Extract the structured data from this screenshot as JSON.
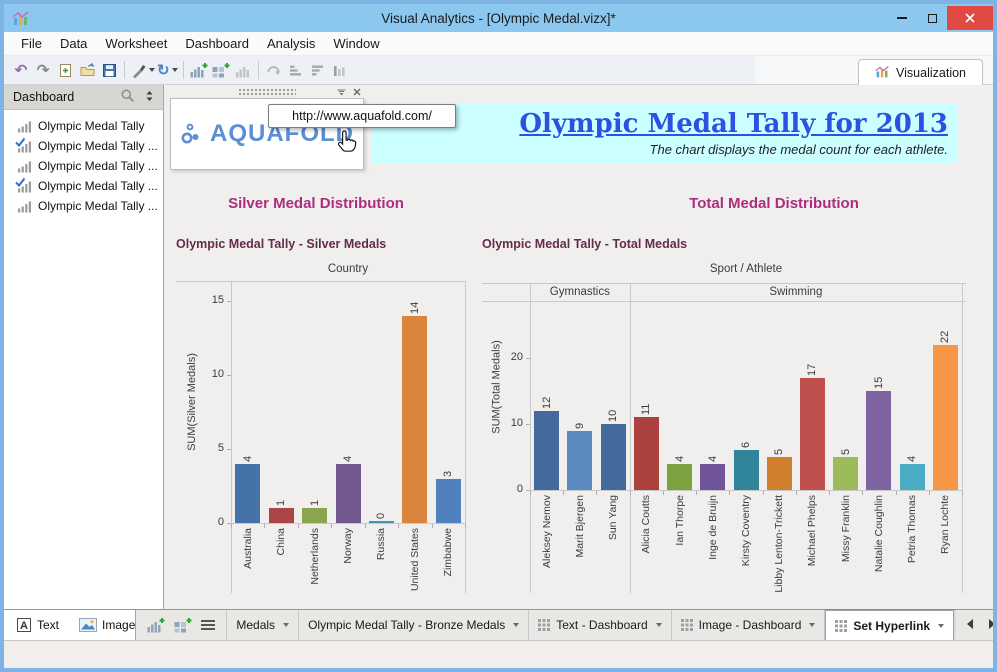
{
  "window": {
    "title": "Visual Analytics - [Olympic Medal.vizx]*"
  },
  "menu": {
    "items": [
      "File",
      "Data",
      "Worksheet",
      "Dashboard",
      "Analysis",
      "Window"
    ]
  },
  "toolbar": {
    "buttons": [
      {
        "icon": "undo-icon"
      },
      {
        "icon": "redo-icon"
      },
      {
        "icon": "new-file-icon"
      },
      {
        "icon": "open-file-icon"
      },
      {
        "icon": "save-icon"
      },
      {
        "sep": true
      },
      {
        "icon": "format-painter-icon",
        "caret": true
      },
      {
        "icon": "refresh-icon",
        "caret": true
      },
      {
        "sep": true
      },
      {
        "icon": "add-worksheet-icon"
      },
      {
        "icon": "add-dashboard-icon"
      },
      {
        "icon": "duplicate-worksheet-icon"
      },
      {
        "sep": true
      },
      {
        "icon": "swap-axes-icon"
      },
      {
        "icon": "sort-ascending-icon"
      },
      {
        "icon": "sort-descending-icon"
      },
      {
        "icon": "highlight-icon"
      }
    ],
    "visualization_label": "Visualization"
  },
  "sidebar": {
    "header": "Dashboard",
    "header_icons": [
      "search-icon",
      "sort-items-icon"
    ],
    "items": [
      {
        "label": "Olympic Medal Tally",
        "icon": "worksheet-chart-icon",
        "checked": false
      },
      {
        "label": "Olympic Medal Tally ...",
        "icon": "worksheet-chart-icon",
        "checked": true
      },
      {
        "label": "Olympic Medal Tally ...",
        "icon": "worksheet-chart-icon",
        "checked": false
      },
      {
        "label": "Olympic Medal Tally ...",
        "icon": "worksheet-chart-icon",
        "checked": true
      },
      {
        "label": "Olympic Medal Tally ...",
        "icon": "worksheet-chart-icon",
        "checked": false
      }
    ]
  },
  "dashboard": {
    "logo_widget": {
      "brand": "AQUAFOLD",
      "icon": "molecule-icon",
      "tooltip": "http://www.aquafold.com/"
    },
    "banner": {
      "title": "Olympic Medal Tally for 2013",
      "subtitle": "The chart displays the medal count for each athlete."
    }
  },
  "chart_data": [
    {
      "type": "bar",
      "section_heading": "Silver Medal Distribution",
      "title": "Olympic Medal Tally - Silver Medals",
      "column_header": "Country",
      "ylabel": "SUM(Silver Medals)",
      "yticks": [
        0,
        5,
        10,
        15
      ],
      "ylim": [
        0,
        16
      ],
      "grid": false,
      "categories": [
        "Australia",
        "China",
        "Netherlands",
        "Norway",
        "Russia",
        "United States",
        "Zimbabwe"
      ],
      "values": [
        4,
        1,
        1,
        4,
        0,
        14,
        3
      ],
      "colors": [
        "#4572a7",
        "#aa4643",
        "#89a54e",
        "#71588f",
        "#4198af",
        "#db843d",
        "#4f81bd"
      ]
    },
    {
      "type": "bar",
      "section_heading": "Total Medal Distribution",
      "title": "Olympic Medal Tally - Total Medals",
      "column_header": "Sport / Athlete",
      "ylabel": "SUM(Total Medals)",
      "yticks": [
        0,
        10,
        20
      ],
      "ylim": [
        0,
        26
      ],
      "grid": false,
      "groups": [
        {
          "label": "Gymnastics",
          "span": 3
        },
        {
          "label": "Swimming",
          "span": 10
        }
      ],
      "categories": [
        "Aleksey Nemov",
        "Marit Bjergen",
        "Sun Yang",
        "Alicia Coutts",
        "Ian Thorpe",
        "Inge de Bruijn",
        "Kirsty Coventry",
        "Libby Lenton-Trickett",
        "Michael Phelps",
        "Missy Franklin",
        "Natalie Coughlin",
        "Petria Thomas",
        "Ryan Lochte"
      ],
      "values": [
        12,
        9,
        10,
        11,
        4,
        4,
        6,
        5,
        17,
        5,
        15,
        4,
        22
      ],
      "colors": [
        "#44699d",
        "#5b8ac0",
        "#44699d",
        "#ac403d",
        "#7ba23f",
        "#6f5499",
        "#31859b",
        "#d0802d",
        "#c0504d",
        "#9bbb59",
        "#8064a2",
        "#4bacc6",
        "#f79646"
      ]
    }
  ],
  "bottom": {
    "tools": [
      {
        "label": "Text",
        "icon": "text-tool-icon"
      },
      {
        "label": "Image",
        "icon": "image-tool-icon"
      }
    ],
    "strip_icons": [
      "add-worksheet-icon",
      "add-dashboard-icon",
      "sheet-list-icon"
    ],
    "tabs": [
      {
        "label": "Medals",
        "type": "worksheet",
        "active": false
      },
      {
        "label": "Olympic Medal Tally - Bronze Medals",
        "type": "worksheet",
        "active": false
      },
      {
        "label": "Text - Dashboard",
        "type": "dashboard",
        "active": false
      },
      {
        "label": "Image - Dashboard",
        "type": "dashboard",
        "active": false
      },
      {
        "label": "Set Hyperlink",
        "type": "dashboard",
        "active": true
      }
    ]
  }
}
